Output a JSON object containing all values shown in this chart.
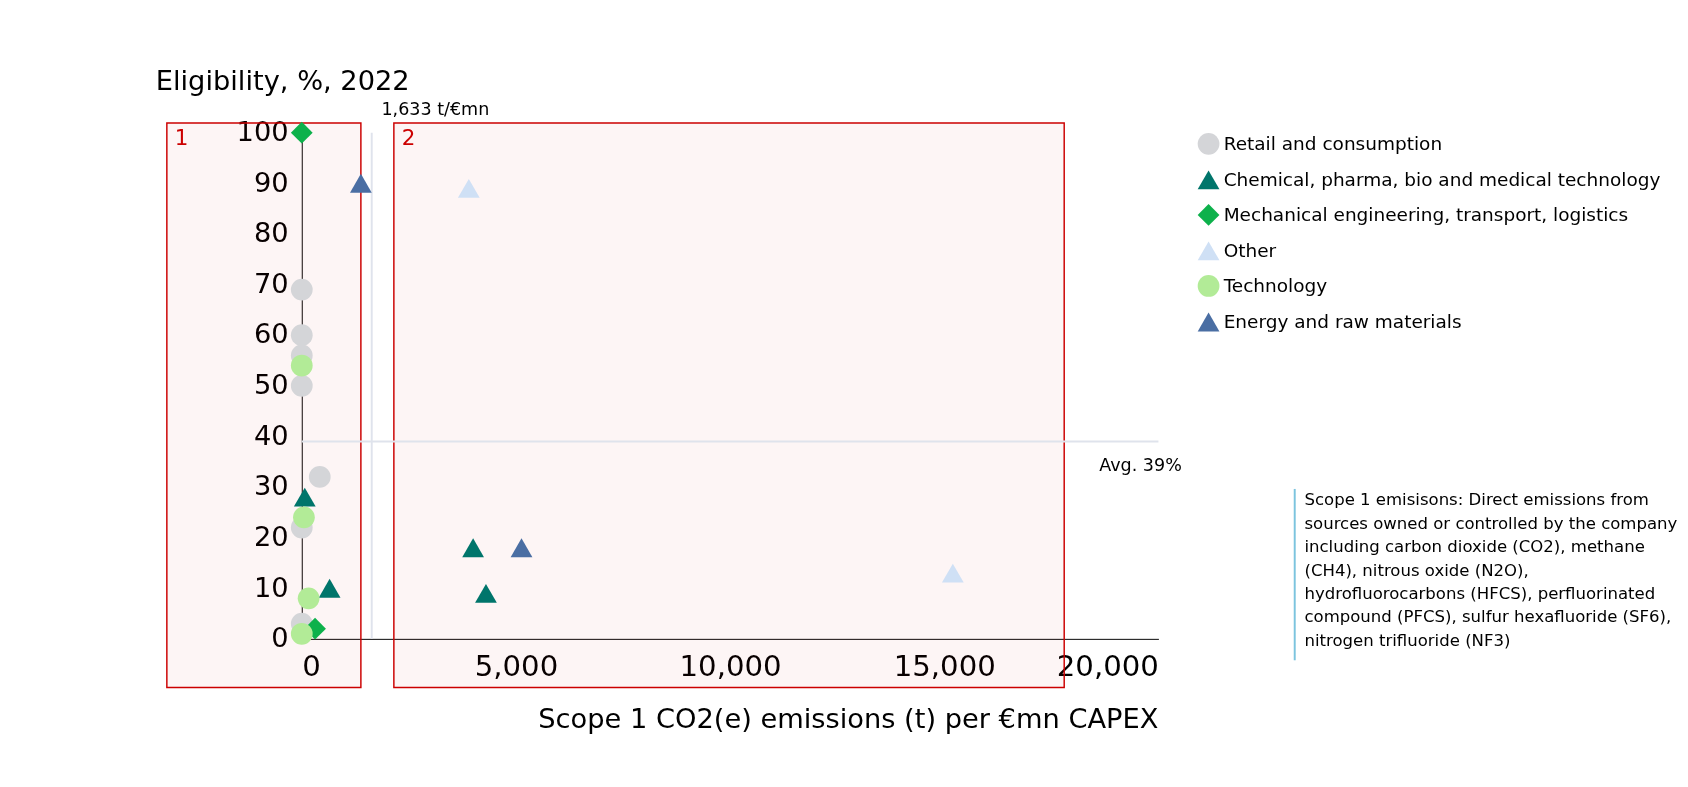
{
  "chart_data": {
    "type": "scatter",
    "ylabel": "Eligibility, %, 2022",
    "xlabel": "Scope 1 CO2(e) emissions (t) per €mn CAPEX",
    "xlim": [
      0,
      20000
    ],
    "xticks": [
      {
        "value": 0,
        "label": "0"
      },
      {
        "value": 5000,
        "label": "5,000"
      },
      {
        "value": 10000,
        "label": "10,000"
      },
      {
        "value": 15000,
        "label": "15,000"
      },
      {
        "value": 20000,
        "label": "20,000"
      }
    ],
    "ylim": [
      0,
      100
    ],
    "yticks": [
      0,
      10,
      20,
      30,
      40,
      50,
      60,
      70,
      80,
      90,
      100
    ],
    "grid": false,
    "legend": "top right",
    "series": [
      {
        "name": "Retail and consumption",
        "color": "#d4d5d8",
        "marker": "circle",
        "x": [
          0,
          0,
          0,
          0,
          420,
          0,
          0
        ],
        "values": [
          69,
          60,
          56,
          50,
          32,
          22,
          3
        ]
      },
      {
        "name": "Chemical, pharma, bio and medical technology",
        "color": "#00756b",
        "marker": "triangle",
        "x": [
          70,
          650,
          4000,
          4300
        ],
        "values": [
          28,
          10,
          18,
          9
        ]
      },
      {
        "name": "Mechanical engineering, transport, logistics",
        "color": "#0db14b",
        "marker": "diamond",
        "x": [
          0,
          310
        ],
        "values": [
          100,
          2
        ]
      },
      {
        "name": "Other",
        "color": "#cfe0f5",
        "marker": "triangle",
        "x": [
          3900,
          15200
        ],
        "values": [
          89,
          13
        ]
      },
      {
        "name": "Technology",
        "color": "#b2eb97",
        "marker": "circle",
        "x": [
          0,
          50,
          160,
          0
        ],
        "values": [
          54,
          24,
          8,
          1
        ]
      },
      {
        "name": "Energy and raw materials",
        "color": "#4a6ea3",
        "marker": "triangle",
        "x": [
          1380,
          5130
        ],
        "values": [
          90,
          18
        ]
      }
    ],
    "ref_lines": [
      {
        "axis": "x",
        "value": 1633,
        "label": "1,633 t/€mn",
        "color": "#dfe3ec"
      },
      {
        "axis": "y",
        "value": 39,
        "label": "Avg. 39%",
        "color": "#dfe3ec"
      }
    ],
    "bands": [
      {
        "axis": "x",
        "from": -3150,
        "to": 1380,
        "label": "1",
        "color": "#cc0000"
      },
      {
        "axis": "x",
        "from": 2150,
        "to": 17800,
        "label": "2",
        "color": "#cc0000"
      }
    ],
    "annotations": [
      "Scope 1 emisisons: Direct emissions from sources owned or controlled by the company including carbon dioxide (CO2), methane (CH4), nitrous oxide (N2O), hydrofluorocarbons (HFCS), perfluorinated compound (PFCS), sulfur hexafluoride (SF6), nitrogen trifluoride (NF3)"
    ]
  }
}
